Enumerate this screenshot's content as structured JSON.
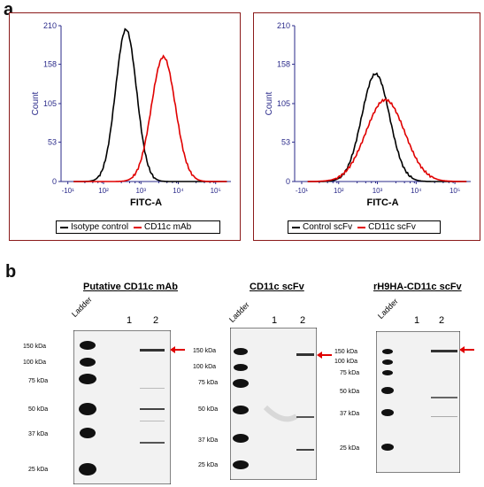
{
  "panel_a": {
    "label": "a"
  },
  "panel_b": {
    "label": "b"
  },
  "chart_data": [
    {
      "type": "line",
      "xlabel": "FITC-A",
      "ylabel": "Count",
      "xscale": "log",
      "x_tick_labels": [
        "-10¹",
        "10²",
        "10³",
        "10⁴",
        "10⁵"
      ],
      "y_tick_labels": [
        "0",
        "53",
        "105",
        "158",
        "210"
      ],
      "ylim": [
        0,
        210
      ],
      "series": [
        {
          "name": "Isotype control",
          "color": "#000000",
          "peak_x": 400,
          "peak_y": 205,
          "width": 0.28
        },
        {
          "name": "CD11c mAb",
          "color": "#e00000",
          "peak_x": 4000,
          "peak_y": 168,
          "width": 0.32
        }
      ]
    },
    {
      "type": "line",
      "xlabel": "FITC-A",
      "ylabel": "Count",
      "xscale": "log",
      "x_tick_labels": [
        "-10¹",
        "10²",
        "10³",
        "10⁴",
        "10⁵"
      ],
      "y_tick_labels": [
        "0",
        "53",
        "105",
        "158",
        "210"
      ],
      "ylim": [
        0,
        210
      ],
      "series": [
        {
          "name": "Control scFv",
          "color": "#000000",
          "peak_x": 900,
          "peak_y": 145,
          "width": 0.36
        },
        {
          "name": "CD11c scFv",
          "color": "#e00000",
          "peak_x": 1600,
          "peak_y": 110,
          "width": 0.5
        }
      ]
    }
  ],
  "blots": [
    {
      "title": "Putative CD11c mAb",
      "ladder_label": "Ladder",
      "lanes": [
        "1",
        "2"
      ],
      "markers": [
        "150 kDa",
        "100 kDa",
        "75 kDa",
        "50 kDa",
        "37 kDa",
        "25 kDa"
      ]
    },
    {
      "title": "CD11c scFv",
      "ladder_label": "Ladder",
      "lanes": [
        "1",
        "2"
      ],
      "markers": [
        "150 kDa",
        "100 kDa",
        "75 kDa",
        "50 kDa",
        "37 kDa",
        "25 kDa"
      ]
    },
    {
      "title": "rH9HA-CD11c scFv",
      "ladder_label": "Ladder",
      "lanes": [
        "1",
        "2"
      ],
      "markers": [
        "150 kDa",
        "100 kDa",
        "75 kDa",
        "50 kDa",
        "37 kDa",
        "25 kDa"
      ]
    }
  ],
  "colors": {
    "frame": "#8b1a1a",
    "axis": "#2a2a8a",
    "red": "#e00000",
    "black": "#000000"
  }
}
